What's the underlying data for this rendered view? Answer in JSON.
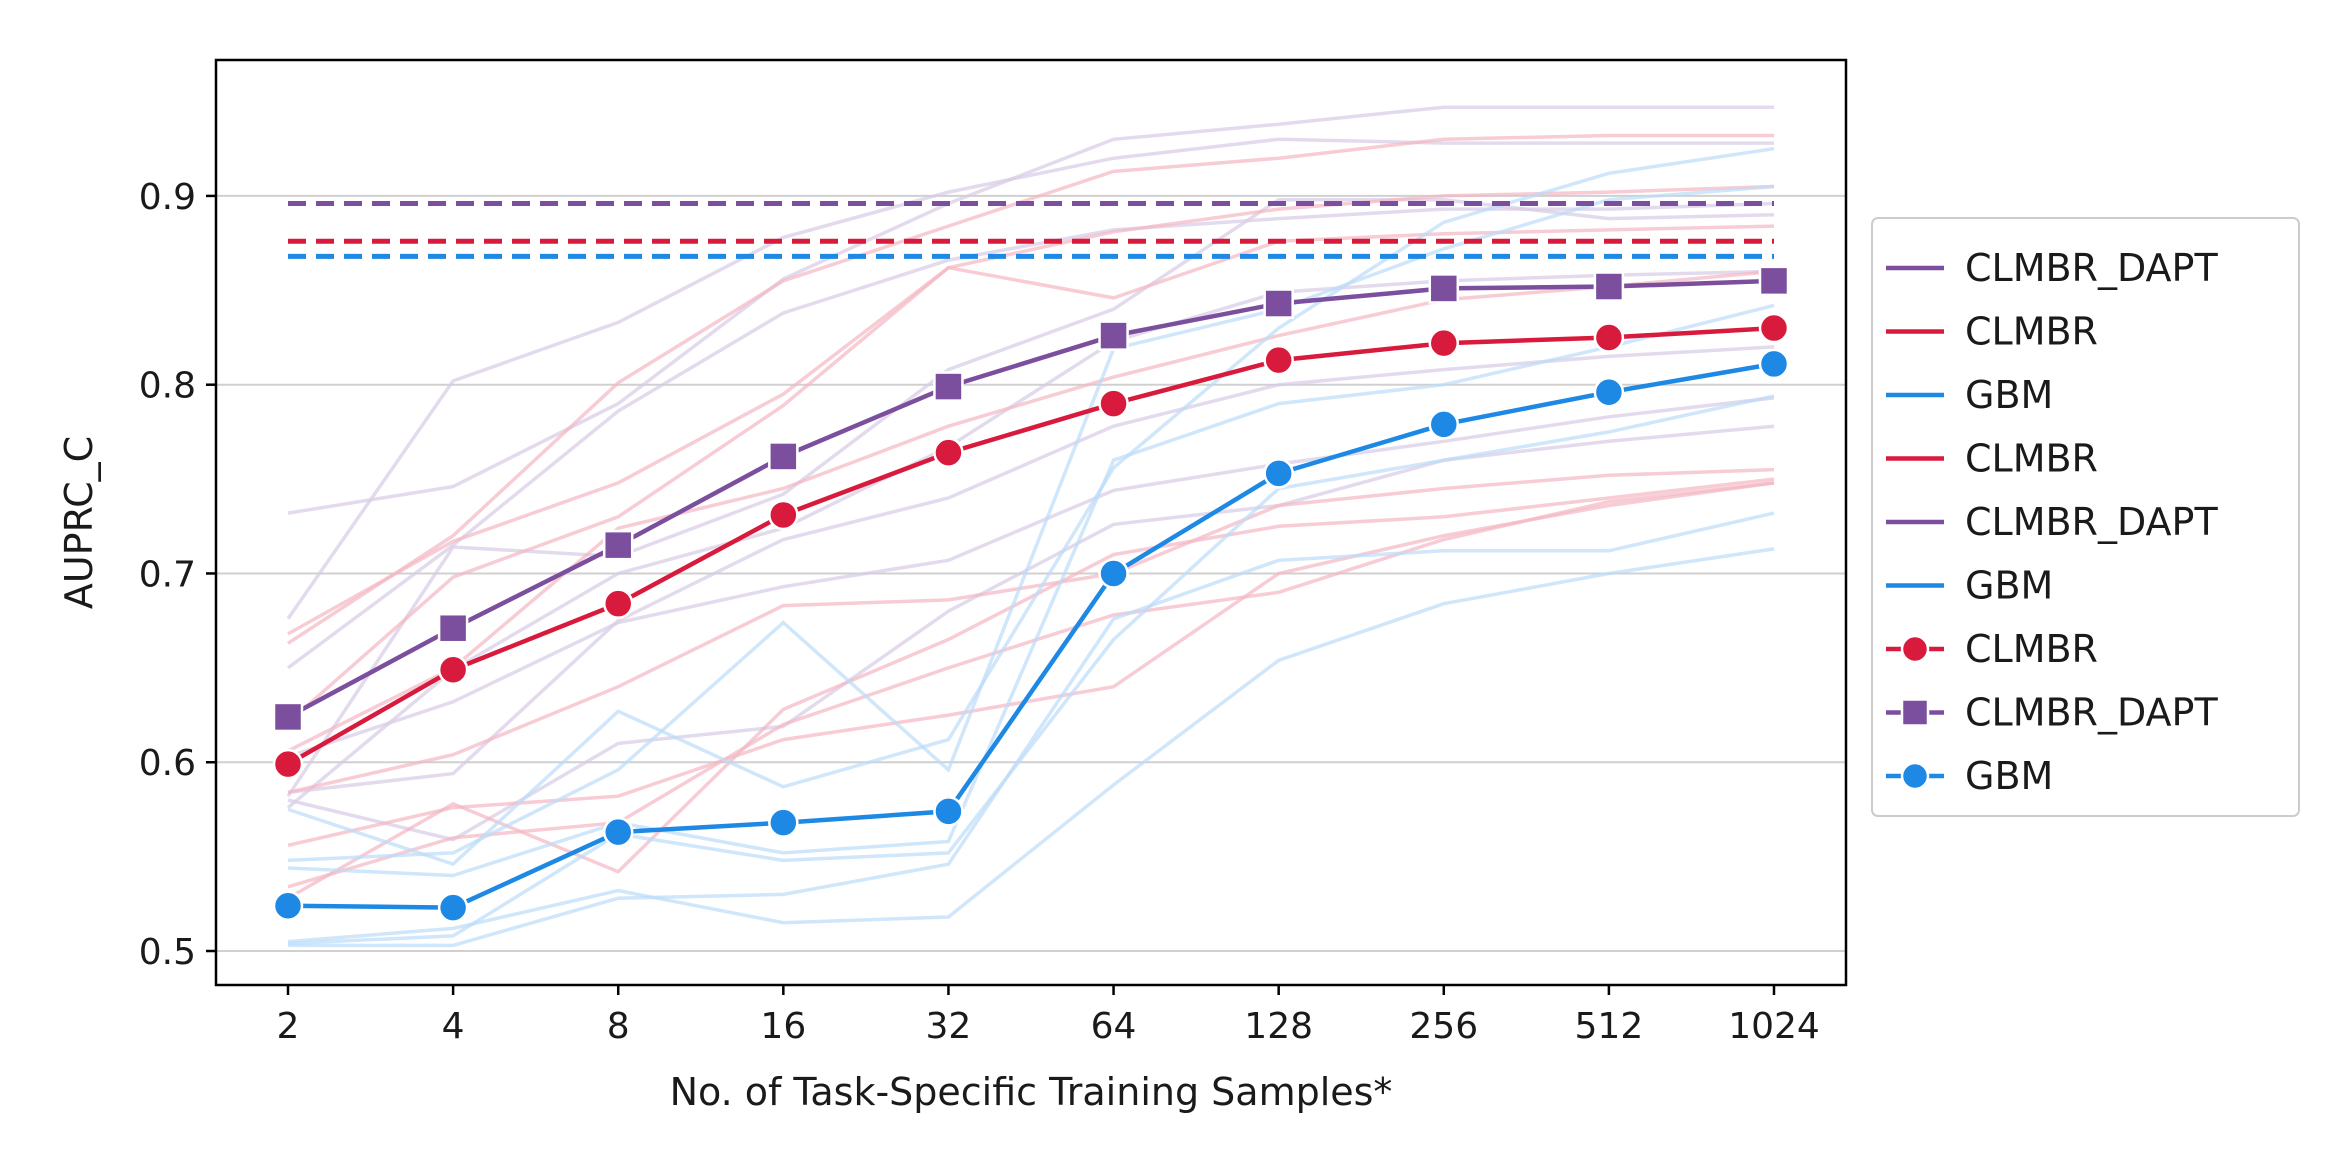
{
  "chart_data": {
    "type": "line",
    "xlabel": "No. of Task-Specific Training Samples*",
    "ylabel": "AUPRC_C",
    "categories": [
      "2",
      "4",
      "8",
      "16",
      "32",
      "64",
      "128",
      "256",
      "512",
      "1024"
    ],
    "x_scale": "log2",
    "ylim": [
      0.482,
      0.972
    ],
    "yticks": [
      0.5,
      0.6,
      0.7,
      0.8,
      0.9
    ],
    "ytick_labels": [
      "0.5",
      "0.6",
      "0.7",
      "0.8",
      "0.9"
    ],
    "grid": "horizontal",
    "legend_position": "right",
    "colors": {
      "clmbr": "#d81b3c",
      "clmbr_dapt": "#7b4f9e",
      "gbm": "#1e88e5",
      "clmbr_faint": "#f4b6c2",
      "clmbr_dapt_faint": "#d7cce6",
      "gbm_faint": "#bcdcf8",
      "grid": "#d0d0d0"
    },
    "reference_lines": [
      {
        "series": "CLMBR_DAPT",
        "value": 0.896,
        "color": "#7b4f9e"
      },
      {
        "series": "CLMBR",
        "value": 0.876,
        "color": "#d81b3c"
      },
      {
        "series": "GBM",
        "value": 0.868,
        "color": "#1e88e5"
      }
    ],
    "series": [
      {
        "name": "CLMBR_DAPT",
        "marker": "square",
        "color": "#7b4f9e",
        "values": [
          0.624,
          0.671,
          0.715,
          0.762,
          0.799,
          0.826,
          0.843,
          0.851,
          0.852,
          0.855
        ]
      },
      {
        "name": "CLMBR",
        "marker": "circle",
        "color": "#d81b3c",
        "values": [
          0.599,
          0.649,
          0.684,
          0.731,
          0.764,
          0.79,
          0.813,
          0.822,
          0.825,
          0.83
        ]
      },
      {
        "name": "GBM",
        "marker": "circle",
        "color": "#1e88e5",
        "values": [
          0.524,
          0.523,
          0.563,
          0.568,
          0.574,
          0.7,
          0.753,
          0.779,
          0.796,
          0.811
        ]
      }
    ],
    "faint_series": [
      {
        "group": "clmbr_dapt",
        "values": [
          0.732,
          0.746,
          0.79,
          0.856,
          0.896,
          0.93,
          0.938,
          0.947,
          0.947,
          0.947
        ]
      },
      {
        "group": "clmbr_dapt",
        "values": [
          0.676,
          0.802,
          0.833,
          0.878,
          0.902,
          0.92,
          0.93,
          0.928,
          0.928,
          0.928
        ]
      },
      {
        "group": "clmbr_dapt",
        "values": [
          0.65,
          0.715,
          0.786,
          0.838,
          0.866,
          0.882,
          0.888,
          0.893,
          0.893,
          0.896
        ]
      },
      {
        "group": "clmbr_dapt",
        "values": [
          0.582,
          0.714,
          0.709,
          0.742,
          0.808,
          0.84,
          0.898,
          0.898,
          0.888,
          0.89
        ]
      },
      {
        "group": "clmbr_dapt",
        "values": [
          0.576,
          0.649,
          0.7,
          0.724,
          0.767,
          0.823,
          0.849,
          0.855,
          0.858,
          0.86
        ]
      },
      {
        "group": "clmbr_dapt",
        "values": [
          0.584,
          0.594,
          0.675,
          0.718,
          0.74,
          0.778,
          0.8,
          0.808,
          0.815,
          0.82
        ]
      },
      {
        "group": "clmbr_dapt",
        "values": [
          0.603,
          0.632,
          0.674,
          0.693,
          0.707,
          0.744,
          0.758,
          0.77,
          0.783,
          0.793
        ]
      },
      {
        "group": "clmbr_dapt",
        "values": [
          0.58,
          0.559,
          0.61,
          0.619,
          0.68,
          0.726,
          0.736,
          0.76,
          0.77,
          0.778
        ]
      },
      {
        "group": "clmbr",
        "values": [
          0.663,
          0.72,
          0.801,
          0.855,
          0.884,
          0.913,
          0.92,
          0.93,
          0.932,
          0.932
        ]
      },
      {
        "group": "clmbr",
        "values": [
          0.668,
          0.717,
          0.748,
          0.795,
          0.862,
          0.881,
          0.893,
          0.9,
          0.902,
          0.905
        ]
      },
      {
        "group": "clmbr",
        "values": [
          0.621,
          0.698,
          0.73,
          0.789,
          0.862,
          0.846,
          0.876,
          0.88,
          0.882,
          0.884
        ]
      },
      {
        "group": "clmbr",
        "values": [
          0.606,
          0.65,
          0.724,
          0.745,
          0.778,
          0.804,
          0.826,
          0.845,
          0.852,
          0.86
        ]
      },
      {
        "group": "clmbr",
        "values": [
          0.584,
          0.604,
          0.64,
          0.683,
          0.686,
          0.7,
          0.736,
          0.745,
          0.752,
          0.755
        ]
      },
      {
        "group": "clmbr",
        "values": [
          0.528,
          0.578,
          0.542,
          0.628,
          0.665,
          0.71,
          0.725,
          0.73,
          0.74,
          0.75
        ]
      },
      {
        "group": "clmbr",
        "values": [
          0.534,
          0.56,
          0.568,
          0.62,
          0.65,
          0.678,
          0.69,
          0.718,
          0.738,
          0.748
        ]
      },
      {
        "group": "clmbr",
        "values": [
          0.556,
          0.576,
          0.582,
          0.612,
          0.625,
          0.64,
          0.7,
          0.72,
          0.736,
          0.748
        ]
      },
      {
        "group": "gbm",
        "values": [
          0.575,
          0.546,
          0.627,
          0.587,
          0.612,
          0.756,
          0.83,
          0.886,
          0.912,
          0.925
        ]
      },
      {
        "group": "gbm",
        "values": [
          0.548,
          0.552,
          0.596,
          0.674,
          0.596,
          0.819,
          0.84,
          0.872,
          0.898,
          0.905
        ]
      },
      {
        "group": "gbm",
        "values": [
          0.544,
          0.54,
          0.568,
          0.552,
          0.558,
          0.76,
          0.79,
          0.8,
          0.82,
          0.842
        ]
      },
      {
        "group": "gbm",
        "values": [
          0.504,
          0.508,
          0.562,
          0.548,
          0.552,
          0.665,
          0.745,
          0.76,
          0.775,
          0.794
        ]
      },
      {
        "group": "gbm",
        "values": [
          0.503,
          0.503,
          0.528,
          0.53,
          0.546,
          0.676,
          0.707,
          0.712,
          0.712,
          0.732
        ]
      },
      {
        "group": "gbm",
        "values": [
          0.505,
          0.512,
          0.532,
          0.515,
          0.518,
          0.588,
          0.654,
          0.684,
          0.7,
          0.713
        ]
      }
    ],
    "legend": [
      {
        "label": "CLMBR_DAPT",
        "color": "#7b4f9e",
        "marker": "none"
      },
      {
        "label": "CLMBR",
        "color": "#d81b3c",
        "marker": "none"
      },
      {
        "label": "GBM",
        "color": "#1e88e5",
        "marker": "none"
      },
      {
        "label": "CLMBR",
        "color": "#d81b3c",
        "marker": "none"
      },
      {
        "label": "CLMBR_DAPT",
        "color": "#7b4f9e",
        "marker": "none"
      },
      {
        "label": "GBM",
        "color": "#1e88e5",
        "marker": "none"
      },
      {
        "label": "CLMBR",
        "color": "#d81b3c",
        "marker": "circle"
      },
      {
        "label": "CLMBR_DAPT",
        "color": "#7b4f9e",
        "marker": "square"
      },
      {
        "label": "GBM",
        "color": "#1e88e5",
        "marker": "circle"
      }
    ]
  }
}
